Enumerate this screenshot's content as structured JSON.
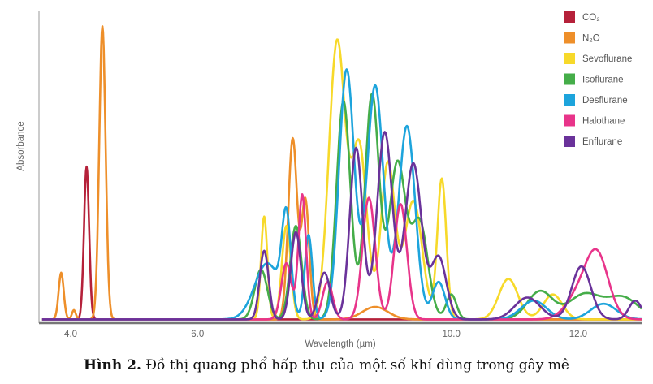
{
  "caption": {
    "label": "Hình 2.",
    "text": " Đồ thị quang phổ hấp thụ của một số khí dùng trong gây mê"
  },
  "chart_data": {
    "type": "line",
    "xlabel": "Wavelength (µm)",
    "ylabel": "Absorbance",
    "xlim": [
      3.5,
      13.0
    ],
    "ylim": [
      0,
      1.0
    ],
    "xticks": [
      "4.0",
      "6.0",
      "10.0",
      "12.0"
    ],
    "xtick_values": [
      4.0,
      6.0,
      10.0,
      12.0
    ],
    "legend_position": "top-right",
    "series": [
      {
        "name": "CO₂",
        "color": "#b5213a",
        "peaks": [
          [
            4.25,
            0.49,
            0.04
          ]
        ]
      },
      {
        "name": "N₂O",
        "color": "#ee8f2a",
        "peaks": [
          [
            3.85,
            0.15,
            0.04
          ],
          [
            4.05,
            0.03,
            0.03
          ],
          [
            4.5,
            0.94,
            0.05
          ],
          [
            7.5,
            0.58,
            0.07
          ],
          [
            7.7,
            0.38,
            0.06
          ],
          [
            8.8,
            0.04,
            0.2
          ]
        ]
      },
      {
        "name": "Sevoflurane",
        "color": "#f7d92a",
        "peaks": [
          [
            7.05,
            0.33,
            0.05
          ],
          [
            7.4,
            0.3,
            0.07
          ],
          [
            8.2,
            0.89,
            0.13
          ],
          [
            8.55,
            0.55,
            0.12
          ],
          [
            9.0,
            0.5,
            0.11
          ],
          [
            9.4,
            0.38,
            0.14
          ],
          [
            9.85,
            0.45,
            0.07
          ],
          [
            10.9,
            0.13,
            0.15
          ],
          [
            11.6,
            0.08,
            0.15
          ]
        ]
      },
      {
        "name": "Isoflurane",
        "color": "#45ad49",
        "peaks": [
          [
            7.0,
            0.16,
            0.1
          ],
          [
            7.55,
            0.3,
            0.09
          ],
          [
            8.3,
            0.7,
            0.11
          ],
          [
            8.75,
            0.72,
            0.11
          ],
          [
            9.15,
            0.5,
            0.13
          ],
          [
            9.5,
            0.31,
            0.13
          ],
          [
            10.0,
            0.08,
            0.08
          ],
          [
            11.4,
            0.09,
            0.2
          ],
          [
            12.1,
            0.08,
            0.25
          ],
          [
            12.7,
            0.07,
            0.25
          ]
        ]
      },
      {
        "name": "Desflurane",
        "color": "#1da4dc",
        "peaks": [
          [
            7.1,
            0.18,
            0.2
          ],
          [
            7.4,
            0.3,
            0.07
          ],
          [
            7.75,
            0.27,
            0.06
          ],
          [
            8.35,
            0.8,
            0.12
          ],
          [
            8.8,
            0.75,
            0.13
          ],
          [
            9.3,
            0.62,
            0.13
          ],
          [
            9.8,
            0.12,
            0.1
          ],
          [
            11.3,
            0.06,
            0.2
          ],
          [
            12.4,
            0.05,
            0.2
          ]
        ]
      },
      {
        "name": "Halothane",
        "color": "#e8348a",
        "peaks": [
          [
            7.4,
            0.18,
            0.08
          ],
          [
            7.65,
            0.4,
            0.06
          ],
          [
            8.05,
            0.12,
            0.08
          ],
          [
            8.7,
            0.39,
            0.1
          ],
          [
            9.2,
            0.37,
            0.1
          ],
          [
            12.3,
            0.2,
            0.18
          ],
          [
            12.0,
            0.07,
            0.2
          ]
        ]
      },
      {
        "name": "Enflurane",
        "color": "#6a329a",
        "peaks": [
          [
            7.05,
            0.22,
            0.07
          ],
          [
            7.55,
            0.28,
            0.08
          ],
          [
            8.0,
            0.15,
            0.09
          ],
          [
            8.5,
            0.55,
            0.1
          ],
          [
            8.95,
            0.6,
            0.12
          ],
          [
            9.4,
            0.5,
            0.13
          ],
          [
            9.8,
            0.2,
            0.12
          ],
          [
            11.2,
            0.07,
            0.2
          ],
          [
            12.05,
            0.17,
            0.15
          ],
          [
            12.9,
            0.06,
            0.1
          ]
        ]
      }
    ]
  }
}
